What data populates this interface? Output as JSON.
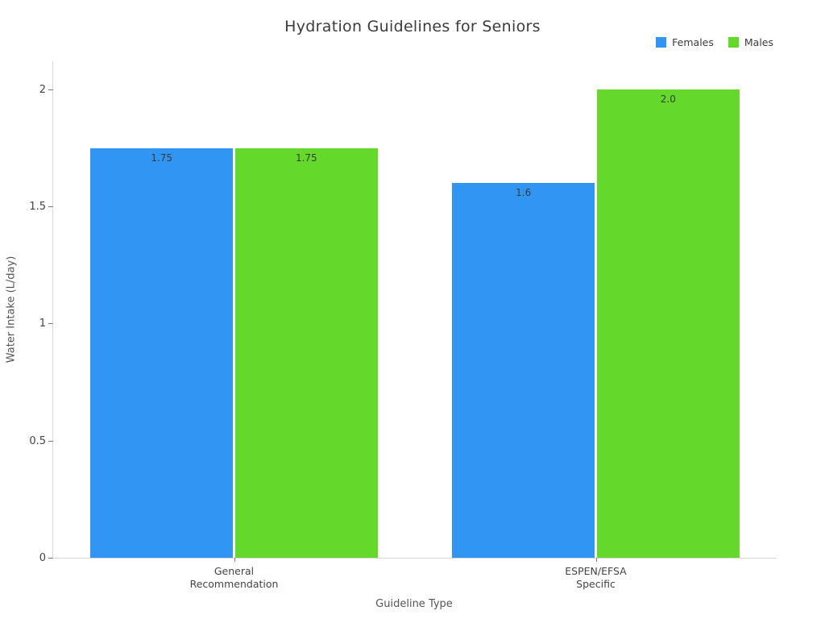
{
  "title": "Hydration Guidelines for Seniors",
  "legend": {
    "items": [
      {
        "label": "Females",
        "color": "#3196f3"
      },
      {
        "label": "Males",
        "color": "#64d92b"
      }
    ]
  },
  "chart_data": {
    "type": "bar",
    "title": "Hydration Guidelines for Seniors",
    "categories": [
      "General\nRecommendation",
      "ESPEN/EFSA\nSpecific"
    ],
    "series": [
      {
        "name": "Females",
        "color": "#3196f3",
        "values": [
          1.75,
          1.6
        ],
        "labels": [
          "1.75",
          "1.6"
        ]
      },
      {
        "name": "Males",
        "color": "#64d92b",
        "values": [
          1.75,
          2.0
        ],
        "labels": [
          "1.75",
          "2.0"
        ]
      }
    ],
    "xlabel": "Guideline Type",
    "ylabel": "Water Intake (L/day)",
    "ylim": [
      0,
      2.12
    ],
    "yticks": [
      0,
      0.5,
      1,
      1.5,
      2
    ],
    "ytick_labels": [
      "0",
      "0.5",
      "1",
      "1.5",
      "2"
    ],
    "grid": false,
    "legend_position": "top-right",
    "bar_value_labels": "inside-top"
  }
}
